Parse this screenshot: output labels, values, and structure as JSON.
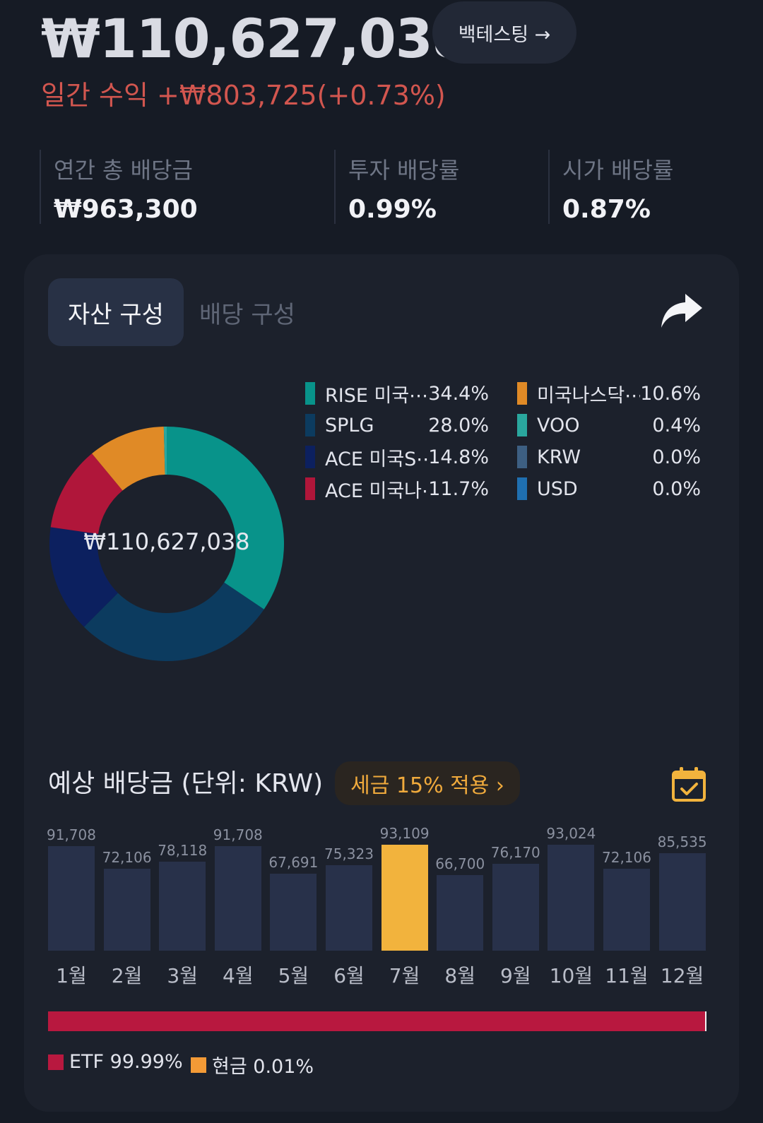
{
  "header": {
    "total_value": "₩110,627,038",
    "daily_return": "일간 수익 +₩803,725(+0.73%)",
    "backtest_label": "백테스팅 →"
  },
  "stats": [
    {
      "label": "연간 총 배당금",
      "value": "₩963,300"
    },
    {
      "label": "투자 배당률",
      "value": "0.99%"
    },
    {
      "label": "시가 배당률",
      "value": "0.87%"
    }
  ],
  "tabs": [
    {
      "label": "자산 구성",
      "active": true
    },
    {
      "label": "배당 구성",
      "active": false
    }
  ],
  "icons": {
    "share": "share-icon",
    "calendar": "calendar-icon"
  },
  "allocation": {
    "center_label": "₩110,627,038",
    "items": [
      {
        "name": "RISE 미국⋯",
        "pct": "34.4%",
        "value": 34.4,
        "color": "#08938a"
      },
      {
        "name": "SPLG",
        "pct": "28.0%",
        "value": 28.0,
        "color": "#0c3b5f"
      },
      {
        "name": "ACE 미국S⋯",
        "pct": "14.8%",
        "value": 14.8,
        "color": "#0c205f"
      },
      {
        "name": "ACE 미국나⋯",
        "pct": "11.7%",
        "value": 11.7,
        "color": "#b0163a"
      },
      {
        "name": "미국나스닥⋯",
        "pct": "10.6%",
        "value": 10.6,
        "color": "#e08a26"
      },
      {
        "name": "VOO",
        "pct": "0.4%",
        "value": 0.4,
        "color": "#2aa79e"
      },
      {
        "name": "KRW",
        "pct": "0.0%",
        "value": 0.0,
        "color": "#3d5f82"
      },
      {
        "name": "USD",
        "pct": "0.0%",
        "value": 0.0,
        "color": "#1f6fb0"
      }
    ]
  },
  "dividend": {
    "title": "예상 배당금 (단위: KRW)",
    "tax_label": "세금 15% 적용 ›",
    "months": [
      {
        "month": "1월",
        "value": 91708,
        "label": "91,708"
      },
      {
        "month": "2월",
        "value": 72106,
        "label": "72,106"
      },
      {
        "month": "3월",
        "value": 78118,
        "label": "78,118"
      },
      {
        "month": "4월",
        "value": 91708,
        "label": "91,708"
      },
      {
        "month": "5월",
        "value": 67691,
        "label": "67,691"
      },
      {
        "month": "6월",
        "value": 75323,
        "label": "75,323"
      },
      {
        "month": "7월",
        "value": 93109,
        "label": "93,109",
        "highlighted": true
      },
      {
        "month": "8월",
        "value": 66700,
        "label": "66,700"
      },
      {
        "month": "9월",
        "value": 76170,
        "label": "76,170"
      },
      {
        "month": "10월",
        "value": 93024,
        "label": "93,024"
      },
      {
        "month": "11월",
        "value": 72106,
        "label": "72,106"
      },
      {
        "month": "12월",
        "value": 85535,
        "label": "85,535"
      }
    ],
    "ratio": [
      {
        "label": "ETF 99.99%",
        "value": 99.99,
        "color": "#b8183f"
      },
      {
        "label": "현금 0.01%",
        "value": 0.01,
        "color": "#f39a36"
      }
    ]
  }
}
